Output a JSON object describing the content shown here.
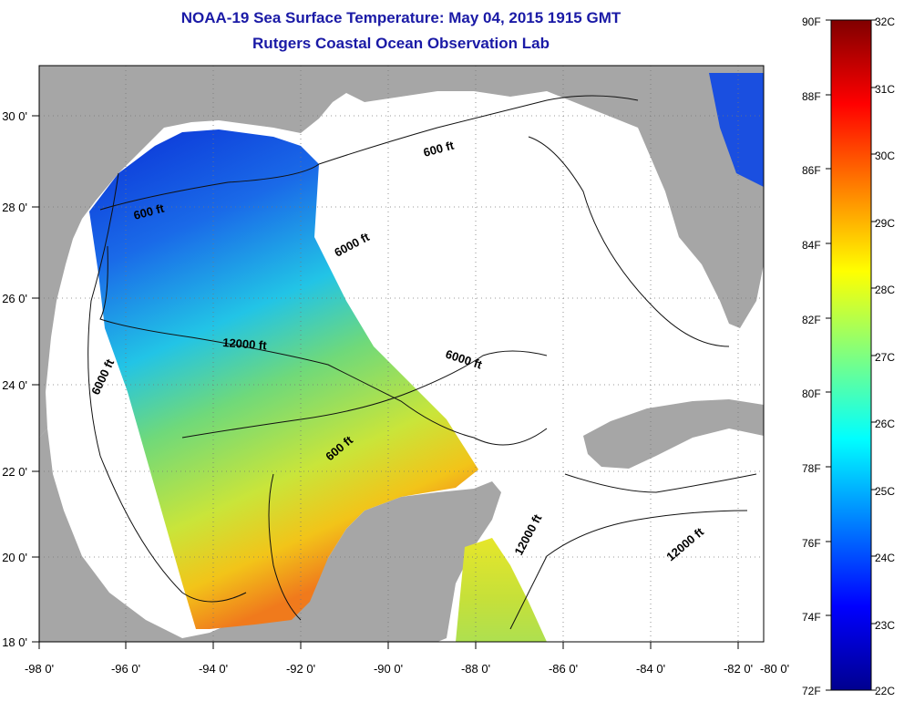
{
  "title": "NOAA-19 Sea Surface Temperature:  May 04, 2015 1915 GMT",
  "subtitle": "Rutgers Coastal Ocean Observation Lab",
  "map": {
    "lon_ticks": [
      "-98 0'",
      "-96 0'",
      "-94 0'",
      "-92 0'",
      "-90 0'",
      "-88 0'",
      "-86 0'",
      "-84 0'",
      "-82 0'",
      "-80 0'"
    ],
    "lat_ticks": [
      "18 0'",
      "20 0'",
      "22 0'",
      "24 0'",
      "26 0'",
      "28 0'",
      "30 0'"
    ],
    "contour_labels": [
      "600 ft",
      "600 ft",
      "600 ft",
      "6000 ft",
      "6000 ft",
      "6000 ft",
      "12000 ft",
      "12000 ft",
      "12000 ft"
    ],
    "colors": {
      "land": "#a6a6a6",
      "water_nodata": "#ffffff"
    }
  },
  "colorbar": {
    "fahrenheit": [
      "90F",
      "88F",
      "86F",
      "84F",
      "82F",
      "80F",
      "78F",
      "76F",
      "74F",
      "72F"
    ],
    "celsius": [
      "32C",
      "31C",
      "30C",
      "29C",
      "28C",
      "27C",
      "26C",
      "25C",
      "24C",
      "23C",
      "22C"
    ],
    "colormap": "jet"
  }
}
